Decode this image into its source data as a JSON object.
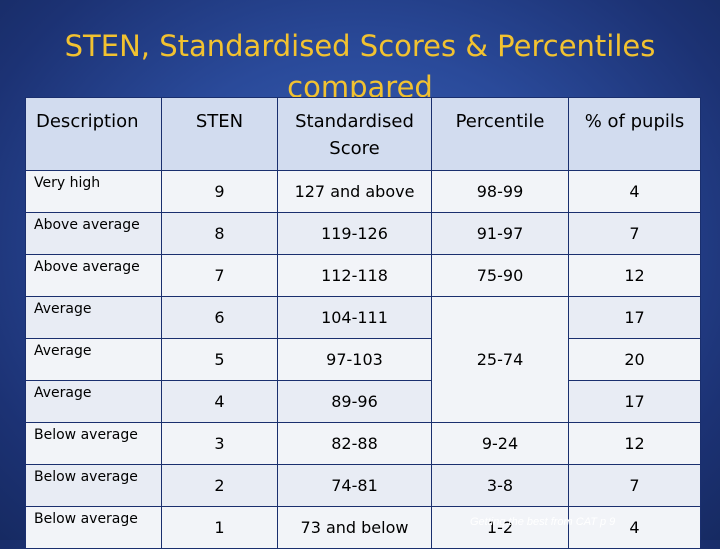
{
  "title": "STEN, Standardised Scores & Percentiles compared",
  "table": {
    "headers": {
      "description": "Description",
      "sten": "STEN",
      "standardised_score": "Standardised Score",
      "percentile": "Percentile",
      "pct_pupils": "% of pupils"
    },
    "rows": [
      {
        "description": "Very high",
        "sten": "9",
        "score": "127  and above",
        "percentile": "98-99",
        "pupils": "4"
      },
      {
        "description": "Above average",
        "sten": "8",
        "score": "119-126",
        "percentile": "91-97",
        "pupils": "7"
      },
      {
        "description": "Above average",
        "sten": "7",
        "score": "112-118",
        "percentile": "75-90",
        "pupils": "12"
      },
      {
        "description": "Average",
        "sten": "6",
        "score": "104-111",
        "percentile": "25-74",
        "pupils": "17"
      },
      {
        "description": "Average",
        "sten": "5",
        "score": "97-103",
        "pupils": "20"
      },
      {
        "description": "Average",
        "sten": "4",
        "score": "89-96",
        "pupils": "17"
      },
      {
        "description": "Below average",
        "sten": "3",
        "score": "82-88",
        "percentile": "9-24",
        "pupils": "12"
      },
      {
        "description": "Below average",
        "sten": "2",
        "score": "74-81",
        "percentile": "3-8",
        "pupils": "7"
      },
      {
        "description": "Below average",
        "sten": "1",
        "score": "73 and below",
        "percentile": "1-2",
        "pupils": "4"
      }
    ]
  },
  "source": "Getting the best from CAT p 9"
}
